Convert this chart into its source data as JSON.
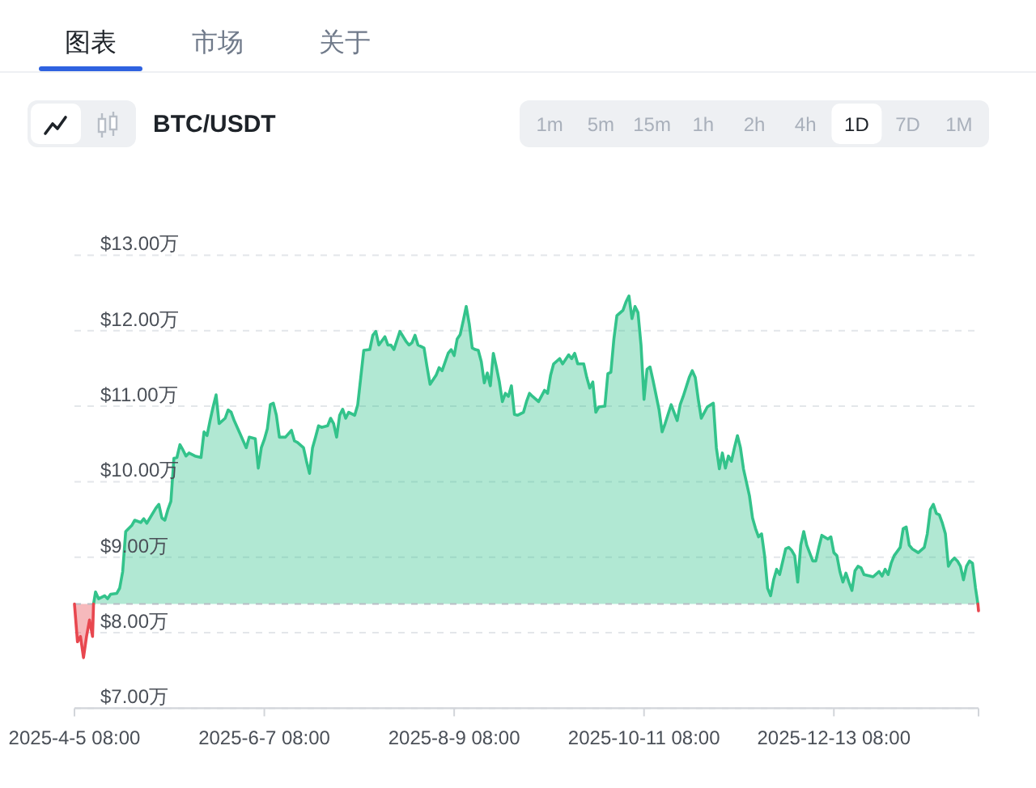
{
  "chart_data": {
    "type": "area",
    "title": "BTC/USDT",
    "annotations": [
      "图表",
      "市场",
      "关于",
      "1m",
      "5m",
      "15m",
      "1h",
      "2h",
      "4h",
      "1D",
      "7D",
      "1M"
    ],
    "xlim": [
      "2025-04-05T08:00",
      "2026-01-30T08:00"
    ],
    "xticks": [
      {
        "value": "2025-04-05T08:00",
        "label": "2025-4-5 08:00"
      },
      {
        "value": "2025-06-07T08:00",
        "label": "2025-6-7 08:00"
      },
      {
        "value": "2025-08-09T08:00",
        "label": "2025-8-9 08:00"
      },
      {
        "value": "2025-10-11T08:00",
        "label": "2025-10-11 08:00"
      },
      {
        "value": "2025-12-13T08:00",
        "label": "2025-12-13 08:00"
      },
      {
        "value": "2026-01-30T08:00",
        "label": null
      }
    ],
    "ylim": [
      7,
      13
    ],
    "yticks": [
      {
        "value": 7,
        "label": "$7.00万"
      },
      {
        "value": 8,
        "label": "$8.00万"
      },
      {
        "value": 9,
        "label": "$9.00万"
      },
      {
        "value": 10,
        "label": "$10.00万"
      },
      {
        "value": 11,
        "label": "$11.00万"
      },
      {
        "value": 12,
        "label": "$12.00万"
      },
      {
        "value": 13,
        "label": "$13.00万"
      }
    ],
    "grid": "y",
    "ref_lines": [
      {
        "axis": "y",
        "value": 8.38,
        "color": "#b9bec6",
        "line_style": "dashed"
      }
    ],
    "series": [
      {
        "color": "#33c38b",
        "x": [
          "2025-04-11T16:00",
          "2025-04-12T08:00",
          "2025-04-13T08:00",
          "2025-04-15T08:00",
          "2025-04-16T08:00",
          "2025-04-17T08:00",
          "2025-04-19T08:00",
          "2025-04-20T08:00",
          "2025-04-21T08:00",
          "2025-04-22T08:00",
          "2025-04-24T08:00",
          "2025-04-25T08:00",
          "2025-04-27T08:00",
          "2025-04-28T08:00",
          "2025-04-29T08:00",
          "2025-05-02T08:00",
          "2025-05-03T08:00",
          "2025-05-04T08:00",
          "2025-05-05T08:00",
          "2025-05-06T08:00",
          "2025-05-07T08:00",
          "2025-05-08T08:00",
          "2025-05-09T08:00",
          "2025-05-10T08:00",
          "2025-05-11T08:00",
          "2025-05-12T08:00",
          "2025-05-13T08:00",
          "2025-05-15T08:00",
          "2025-05-17T08:00",
          "2025-05-18T08:00",
          "2025-05-19T08:00",
          "2025-05-20T08:00",
          "2025-05-21T08:00",
          "2025-05-22T08:00",
          "2025-05-23T08:00",
          "2025-05-25T08:00",
          "2025-05-26T08:00",
          "2025-05-27T08:00",
          "2025-05-28T08:00",
          "2025-05-30T08:00",
          "2025-06-01T08:00",
          "2025-06-02T08:00",
          "2025-06-04T08:00",
          "2025-06-05T08:00",
          "2025-06-06T08:00",
          "2025-06-07T08:00",
          "2025-06-08T08:00",
          "2025-06-09T08:00",
          "2025-06-10T08:00",
          "2025-06-11T08:00",
          "2025-06-12T08:00",
          "2025-06-14T08:00",
          "2025-06-16T08:00",
          "2025-06-17T08:00",
          "2025-06-18T08:00",
          "2025-06-20T08:00",
          "2025-06-21T08:00",
          "2025-06-22T08:00",
          "2025-06-23T08:00",
          "2025-06-24T08:00",
          "2025-06-25T08:00",
          "2025-06-26T08:00",
          "2025-06-28T08:00",
          "2025-06-29T08:00",
          "2025-06-30T08:00",
          "2025-07-01T08:00",
          "2025-07-02T08:00",
          "2025-07-03T08:00",
          "2025-07-04T08:00",
          "2025-07-05T08:00",
          "2025-07-07T08:00",
          "2025-07-08T08:00",
          "2025-07-09T08:00",
          "2025-07-10T08:00",
          "2025-07-12T08:00",
          "2025-07-13T08:00",
          "2025-07-14T08:00",
          "2025-07-15T08:00",
          "2025-07-17T08:00",
          "2025-07-18T08:00",
          "2025-07-19T08:00",
          "2025-07-20T08:00",
          "2025-07-22T08:00",
          "2025-07-24T08:00",
          "2025-07-25T08:00",
          "2025-07-26T08:00",
          "2025-07-27T08:00",
          "2025-07-28T08:00",
          "2025-07-30T08:00",
          "2025-07-31T08:00",
          "2025-08-01T08:00",
          "2025-08-03T08:00",
          "2025-08-04T08:00",
          "2025-08-05T08:00",
          "2025-08-07T08:00",
          "2025-08-08T08:00",
          "2025-08-09T08:00",
          "2025-08-10T08:00",
          "2025-08-11T08:00",
          "2025-08-12T08:00",
          "2025-08-13T08:00",
          "2025-08-14T08:00",
          "2025-08-15T08:00",
          "2025-08-16T08:00",
          "2025-08-17T08:00",
          "2025-08-18T08:00",
          "2025-08-19T08:00",
          "2025-08-20T08:00",
          "2025-08-21T08:00",
          "2025-08-22T08:00",
          "2025-08-23T08:00",
          "2025-08-24T08:00",
          "2025-08-25T08:00",
          "2025-08-26T08:00",
          "2025-08-27T08:00",
          "2025-08-28T08:00",
          "2025-08-29T08:00",
          "2025-08-30T08:00",
          "2025-09-01T08:00",
          "2025-09-02T08:00",
          "2025-09-03T08:00",
          "2025-09-04T08:00",
          "2025-09-06T08:00",
          "2025-09-08T08:00",
          "2025-09-09T08:00",
          "2025-09-10T08:00",
          "2025-09-11T08:00",
          "2025-09-13T08:00",
          "2025-09-14T08:00",
          "2025-09-16T08:00",
          "2025-09-17T08:00",
          "2025-09-18T08:00",
          "2025-09-19T08:00",
          "2025-09-21T08:00",
          "2025-09-22T08:00",
          "2025-09-23T08:00",
          "2025-09-24T08:00",
          "2025-09-25T08:00",
          "2025-09-26T08:00",
          "2025-09-28T08:00",
          "2025-09-29T08:00",
          "2025-09-30T08:00",
          "2025-10-01T08:00",
          "2025-10-02T08:00",
          "2025-10-04T08:00",
          "2025-10-05T08:00",
          "2025-10-06T08:00",
          "2025-10-07T08:00",
          "2025-10-08T08:00",
          "2025-10-09T08:00",
          "2025-10-10T08:00",
          "2025-10-11T08:00",
          "2025-10-12T08:00",
          "2025-10-13T08:00",
          "2025-10-14T08:00",
          "2025-10-16T08:00",
          "2025-10-17T08:00",
          "2025-10-18T08:00",
          "2025-10-20T08:00",
          "2025-10-22T08:00",
          "2025-10-23T08:00",
          "2025-10-24T08:00",
          "2025-10-26T08:00",
          "2025-10-27T08:00",
          "2025-10-28T08:00",
          "2025-10-29T08:00",
          "2025-10-30T08:00",
          "2025-11-01T08:00",
          "2025-11-03T08:00",
          "2025-11-04T08:00",
          "2025-11-05T08:00",
          "2025-11-06T08:00",
          "2025-11-07T08:00",
          "2025-11-08T08:00",
          "2025-11-09T08:00",
          "2025-11-10T08:00",
          "2025-11-11T08:00",
          "2025-11-12T08:00",
          "2025-11-13T08:00",
          "2025-11-14T08:00",
          "2025-11-15T08:00",
          "2025-11-16T08:00",
          "2025-11-17T08:00",
          "2025-11-18T08:00",
          "2025-11-19T08:00",
          "2025-11-20T08:00",
          "2025-11-21T08:00",
          "2025-11-22T08:00",
          "2025-11-23T08:00",
          "2025-11-24T08:00",
          "2025-11-25T08:00",
          "2025-11-27T08:00",
          "2025-11-28T08:00",
          "2025-11-29T08:00",
          "2025-11-30T08:00",
          "2025-12-01T08:00",
          "2025-12-02T08:00",
          "2025-12-03T08:00",
          "2025-12-04T08:00",
          "2025-12-06T08:00",
          "2025-12-07T08:00",
          "2025-12-08T08:00",
          "2025-12-09T08:00",
          "2025-12-11T08:00",
          "2025-12-12T08:00",
          "2025-12-13T08:00",
          "2025-12-14T08:00",
          "2025-12-15T08:00",
          "2025-12-16T08:00",
          "2025-12-17T08:00",
          "2025-12-18T08:00",
          "2025-12-19T08:00",
          "2025-12-20T08:00",
          "2025-12-21T08:00",
          "2025-12-22T08:00",
          "2025-12-23T08:00",
          "2025-12-25T08:00",
          "2025-12-26T08:00",
          "2025-12-28T08:00",
          "2025-12-29T08:00",
          "2025-12-30T08:00",
          "2025-12-31T08:00",
          "2026-01-01T08:00",
          "2026-01-02T08:00",
          "2026-01-04T08:00",
          "2026-01-05T08:00",
          "2026-01-06T08:00",
          "2026-01-07T08:00",
          "2026-01-08T08:00",
          "2026-01-10T08:00",
          "2026-01-12T08:00",
          "2026-01-13T08:00",
          "2026-01-14T08:00",
          "2026-01-15T08:00",
          "2026-01-16T08:00",
          "2026-01-17T08:00",
          "2026-01-18T08:00",
          "2026-01-19T08:00",
          "2026-01-20T08:00",
          "2026-01-21T08:00",
          "2026-01-22T08:00",
          "2026-01-23T08:00",
          "2026-01-24T08:00",
          "2026-01-25T08:00",
          "2026-01-26T08:00",
          "2026-01-27T08:00",
          "2026-01-28T08:00",
          "2026-01-29T08:00",
          "2026-01-30T03:00"
        ],
        "values": [
          8.38,
          8.54,
          8.45,
          8.49,
          8.45,
          8.51,
          8.52,
          8.59,
          8.81,
          9.34,
          9.42,
          9.49,
          9.46,
          9.51,
          9.45,
          9.65,
          9.7,
          9.52,
          9.49,
          9.63,
          9.74,
          10.31,
          10.32,
          10.49,
          10.42,
          10.34,
          10.38,
          10.34,
          10.32,
          10.66,
          10.61,
          10.81,
          10.99,
          11.15,
          10.77,
          10.84,
          10.95,
          10.92,
          10.81,
          10.63,
          10.45,
          10.59,
          10.57,
          10.18,
          10.45,
          10.56,
          10.7,
          11.02,
          11.04,
          10.88,
          10.59,
          10.59,
          10.68,
          10.54,
          10.52,
          10.45,
          10.27,
          10.11,
          10.45,
          10.59,
          10.74,
          10.72,
          10.74,
          10.84,
          10.77,
          10.59,
          10.88,
          10.96,
          10.84,
          10.92,
          10.88,
          11.02,
          11.38,
          11.74,
          11.75,
          11.94,
          11.99,
          11.81,
          11.92,
          11.81,
          11.81,
          11.75,
          11.99,
          11.86,
          11.81,
          11.84,
          11.94,
          11.81,
          11.77,
          11.52,
          11.29,
          11.41,
          11.51,
          11.47,
          11.7,
          11.75,
          11.67,
          11.89,
          11.95,
          12.13,
          12.32,
          12.09,
          11.77,
          11.75,
          11.74,
          11.59,
          11.31,
          11.44,
          11.27,
          11.7,
          11.52,
          11.32,
          11.06,
          11.17,
          11.13,
          11.27,
          10.89,
          10.88,
          10.92,
          11.06,
          11.17,
          11.13,
          11.06,
          11.21,
          11.17,
          11.41,
          11.56,
          11.63,
          11.56,
          11.68,
          11.63,
          11.7,
          11.56,
          11.56,
          11.38,
          11.24,
          11.32,
          10.92,
          10.99,
          11.0,
          11.43,
          11.45,
          11.89,
          12.2,
          12.27,
          12.38,
          12.46,
          12.16,
          12.32,
          12.24,
          11.81,
          11.09,
          11.49,
          11.52,
          11.34,
          10.95,
          10.66,
          10.77,
          11.02,
          10.81,
          11.02,
          11.13,
          11.38,
          11.47,
          11.38,
          11.09,
          10.84,
          10.99,
          11.04,
          10.45,
          10.17,
          10.38,
          10.18,
          10.34,
          10.27,
          10.45,
          10.61,
          10.45,
          10.17,
          9.99,
          9.81,
          9.52,
          9.38,
          9.27,
          9.31,
          9.02,
          8.59,
          8.49,
          8.7,
          8.84,
          8.77,
          9.11,
          9.13,
          9.09,
          9.02,
          8.67,
          9.16,
          9.34,
          9.16,
          8.95,
          8.95,
          9.13,
          9.29,
          9.24,
          9.27,
          9.06,
          9.02,
          8.81,
          8.67,
          8.79,
          8.67,
          8.56,
          8.82,
          8.88,
          8.86,
          8.77,
          8.75,
          8.74,
          8.81,
          8.75,
          8.84,
          8.77,
          8.92,
          9.02,
          9.13,
          9.38,
          9.4,
          9.16,
          9.11,
          9.06,
          9.13,
          9.31,
          9.63,
          9.7,
          9.58,
          9.56,
          9.45,
          9.31,
          8.88,
          8.95,
          8.99,
          8.95,
          8.88,
          8.7,
          8.88,
          8.95,
          8.92,
          8.59,
          8.38
        ]
      },
      {
        "color": "#e8474f",
        "x": [
          "2025-04-05T08:00",
          "2025-04-06T08:00",
          "2025-04-07T08:00",
          "2025-04-08T08:00",
          "2025-04-09T08:00",
          "2025-04-10T08:00",
          "2025-04-11T08:00",
          "2025-04-11T16:00"
        ],
        "values": [
          8.38,
          7.88,
          7.95,
          7.67,
          7.95,
          8.17,
          7.95,
          8.38
        ]
      },
      {
        "type": "line",
        "color": "#e8474f",
        "x": [
          "2026-01-30T03:00",
          "2026-01-30T08:00"
        ],
        "values": [
          8.38,
          8.29
        ]
      }
    ]
  }
}
